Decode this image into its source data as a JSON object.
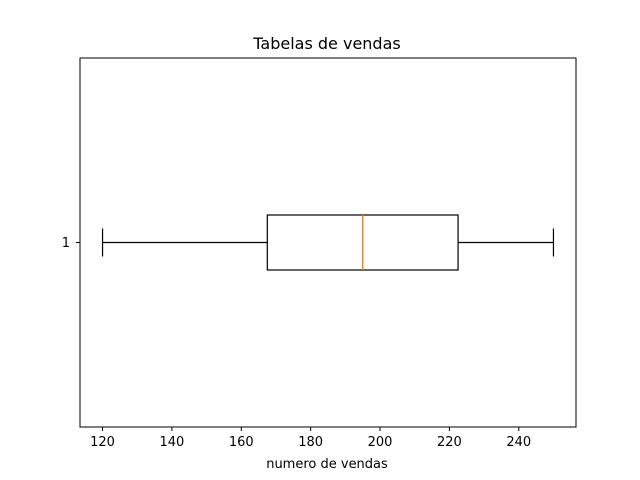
{
  "chart_data": {
    "type": "boxplot",
    "orientation": "horizontal",
    "title": "Tabelas de vendas",
    "xlabel": "numero de vendas",
    "ylabel": "",
    "xlim": [
      113.5,
      256.5
    ],
    "x_ticks": [
      120,
      140,
      160,
      180,
      200,
      220,
      240
    ],
    "y_tick_labels": [
      "1"
    ],
    "grid": false,
    "boxes": [
      {
        "label": "1",
        "whisker_low": 120,
        "q1": 167.5,
        "median": 195,
        "q3": 222.5,
        "whisker_high": 250
      }
    ],
    "colors": {
      "box": "#000000",
      "median": "#ff7f0e"
    }
  }
}
